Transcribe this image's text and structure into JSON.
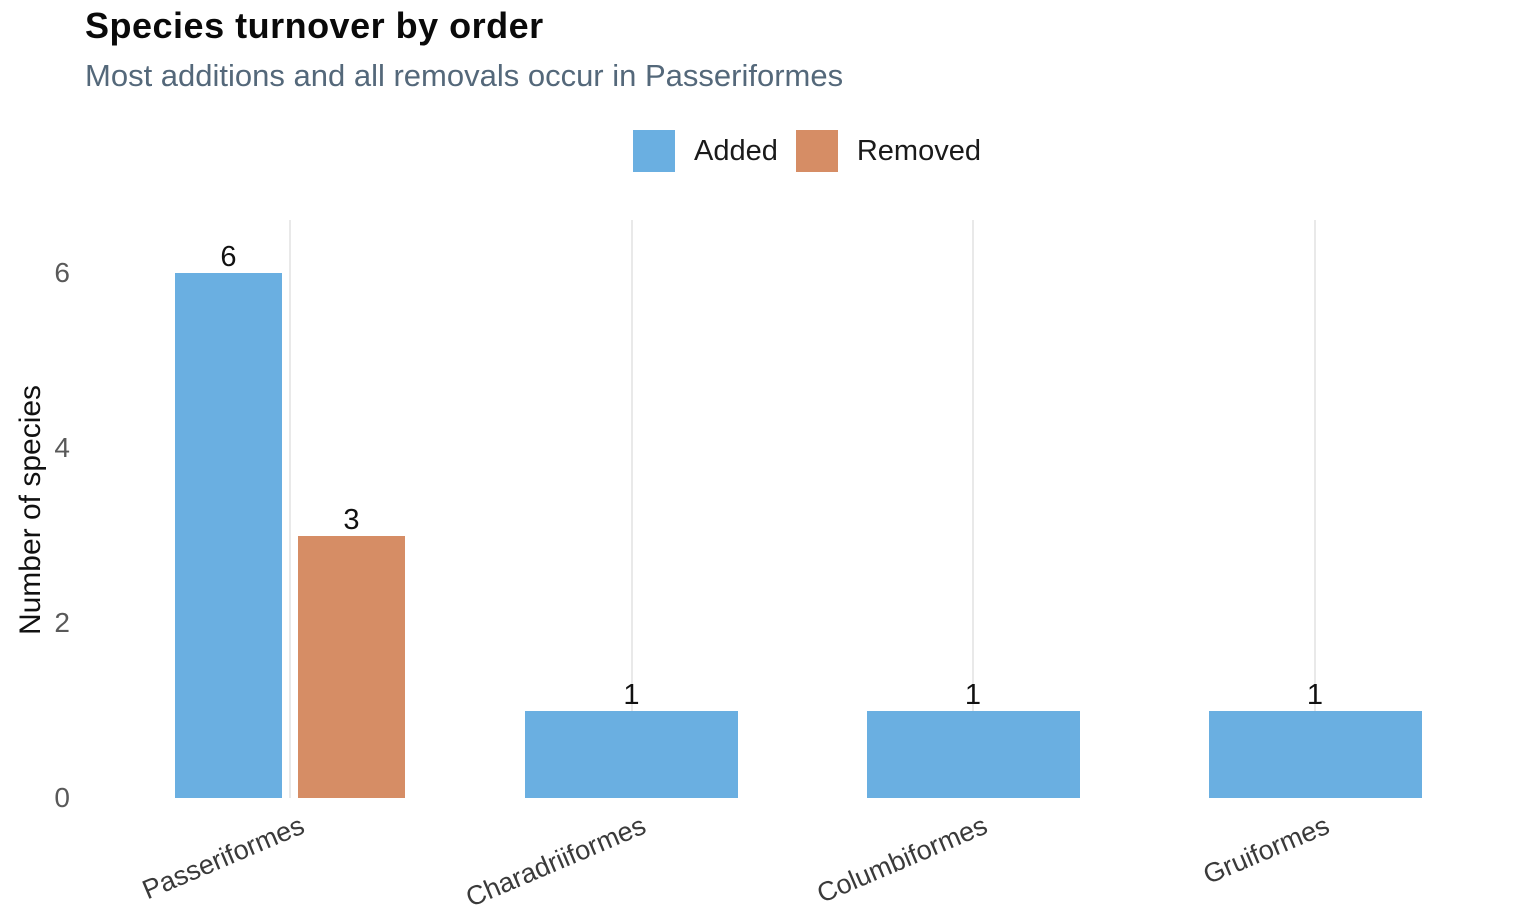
{
  "title": "Species turnover by order",
  "subtitle": "Most additions and all removals occur in Passeriformes",
  "legend": {
    "added_label": "Added",
    "removed_label": "Removed"
  },
  "colors": {
    "added": "#6AAFE1",
    "removed": "#D68D65",
    "title_text": "#0A0A0A",
    "subtitle_text": "#54687A",
    "legend_text": "#1A1A1A",
    "value_label": "#111111",
    "y_tick": "#595959",
    "x_tick": "#3A3A3A",
    "grid": "#E9E9E9",
    "background": "#FFFFFF"
  },
  "chart_data": {
    "type": "bar",
    "title": "Species turnover by order",
    "subtitle": "Most additions and all removals occur in Passeriformes",
    "categories": [
      "Passeriformes",
      "Charadriiformes",
      "Columbiformes",
      "Gruiformes"
    ],
    "series": [
      {
        "name": "Added",
        "color": "#6AAFE1",
        "values": [
          6,
          1,
          1,
          1
        ]
      },
      {
        "name": "Removed",
        "color": "#D68D65",
        "values": [
          3,
          0,
          0,
          0
        ]
      }
    ],
    "bar_labels": [
      {
        "category": "Passeriformes",
        "Added": 6,
        "Removed": 3
      },
      {
        "category": "Charadriiformes",
        "Added": 1
      },
      {
        "category": "Columbiformes",
        "Added": 1
      },
      {
        "category": "Gruiformes",
        "Added": 1
      }
    ],
    "xlabel": "",
    "ylabel": "Number of species",
    "yticks": [
      0,
      2,
      4,
      6
    ],
    "ylim": [
      0,
      6.6
    ],
    "grid": "vertical-at-category-centers",
    "legend_position": "top-center",
    "x_tick_rotation_deg": -23
  }
}
